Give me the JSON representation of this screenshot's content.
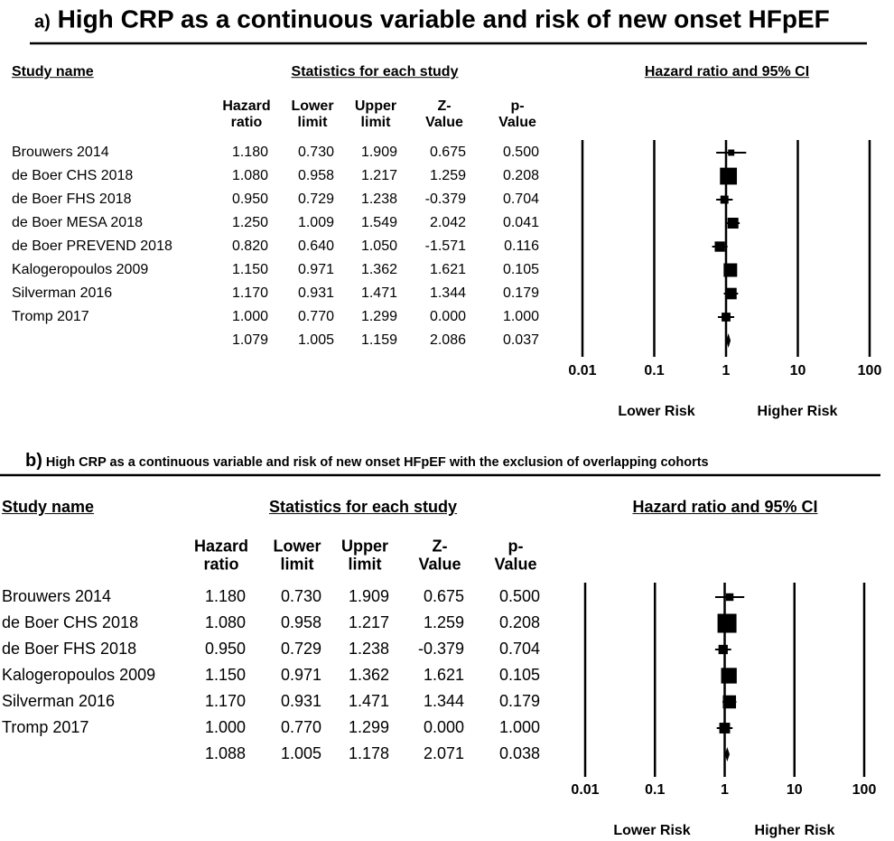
{
  "chart_data": [
    {
      "type": "forest",
      "panel_label": "a)",
      "title": "High CRP as a continuous variable and risk of new onset HFpEF",
      "study_header": "Study name",
      "stats_header": "Statistics for each study",
      "plot_header": "Hazard ratio and 95% CI",
      "categories": [
        "Brouwers 2014",
        "de Boer CHS 2018",
        "de Boer FHS 2018",
        "de Boer MESA 2018",
        "de Boer PREVEND 2018",
        "Kalogeropoulos 2009",
        "Silverman 2016",
        "Tromp 2017",
        null
      ],
      "hazard_ratio": {
        "name": "Hazard ratio",
        "values": [
          1.18,
          1.08,
          0.95,
          1.25,
          0.82,
          1.15,
          1.17,
          1.0,
          1.079
        ],
        "value_labels": [
          "1.180",
          "1.080",
          "0.950",
          "1.250",
          "0.820",
          "1.150",
          "1.170",
          "1.000",
          "1.079"
        ]
      },
      "lower_limit": {
        "name": "Lower limit",
        "values": [
          0.73,
          0.958,
          0.729,
          1.009,
          0.64,
          0.971,
          0.931,
          0.77,
          1.005
        ],
        "value_labels": [
          "0.730",
          "0.958",
          "0.729",
          "1.009",
          "0.640",
          "0.971",
          "0.931",
          "0.770",
          "1.005"
        ]
      },
      "upper_limit": {
        "name": "Upper limit",
        "values": [
          1.909,
          1.217,
          1.238,
          1.549,
          1.05,
          1.362,
          1.471,
          1.299,
          1.159
        ],
        "value_labels": [
          "1.909",
          "1.217",
          "1.238",
          "1.549",
          "1.050",
          "1.362",
          "1.471",
          "1.299",
          "1.159"
        ]
      },
      "z_value": {
        "name": "Z-Value",
        "values": [
          0.675,
          1.259,
          -0.379,
          2.042,
          -1.571,
          1.621,
          1.344,
          0,
          2.086
        ],
        "value_labels": [
          "0.675",
          "1.259",
          "-0.379",
          "2.042",
          "-1.571",
          "1.621",
          "1.344",
          "0.000",
          "2.086"
        ]
      },
      "p_value": {
        "name": "p-Value",
        "values": [
          0.5,
          0.208,
          0.704,
          0.041,
          0.116,
          0.105,
          0.179,
          1,
          0.037
        ],
        "value_labels": [
          "0.500",
          "0.208",
          "0.704",
          "0.041",
          "0.116",
          "0.105",
          "0.179",
          "1.000",
          "0.037"
        ]
      },
      "weights": [
        3,
        22,
        5,
        9,
        8,
        14,
        10,
        6,
        null
      ],
      "log_x": true,
      "xlim": [
        0.01,
        100
      ],
      "xticks": [
        0.01,
        0.1,
        1,
        10,
        100
      ],
      "grid": true,
      "x_annotations": [
        "Lower Risk",
        "Higher Risk"
      ],
      "color": "#000000"
    },
    {
      "type": "forest",
      "panel_label": "b)",
      "title": "High CRP as a continuous variable and risk of new onset HFpEF with the exclusion of overlapping cohorts",
      "study_header": "Study name",
      "stats_header": "Statistics for each study",
      "plot_header": "Hazard ratio and 95% CI",
      "categories": [
        "Brouwers 2014",
        "de Boer CHS 2018",
        "de Boer FHS 2018",
        "Kalogeropoulos 2009",
        "Silverman 2016",
        "Tromp 2017",
        null
      ],
      "hazard_ratio": {
        "name": "Hazard ratio",
        "values": [
          1.18,
          1.08,
          0.95,
          1.15,
          1.17,
          1.0,
          1.088
        ],
        "value_labels": [
          "1.180",
          "1.080",
          "0.950",
          "1.150",
          "1.170",
          "1.000",
          "1.088"
        ]
      },
      "lower_limit": {
        "name": "Lower limit",
        "values": [
          0.73,
          0.958,
          0.729,
          0.971,
          0.931,
          0.77,
          1.005
        ],
        "value_labels": [
          "0.730",
          "0.958",
          "0.729",
          "0.971",
          "0.931",
          "0.770",
          "1.005"
        ]
      },
      "upper_limit": {
        "name": "Upper limit",
        "values": [
          1.909,
          1.217,
          1.238,
          1.362,
          1.471,
          1.299,
          1.178
        ],
        "value_labels": [
          "1.909",
          "1.217",
          "1.238",
          "1.362",
          "1.471",
          "1.299",
          "1.178"
        ]
      },
      "z_value": {
        "name": "Z-Value",
        "values": [
          0.675,
          1.259,
          -0.379,
          1.621,
          1.344,
          0,
          2.071
        ],
        "value_labels": [
          "0.675",
          "1.259",
          "-0.379",
          "1.621",
          "1.344",
          "0.000",
          "2.071"
        ]
      },
      "p_value": {
        "name": "p-Value",
        "values": [
          0.5,
          0.208,
          0.704,
          0.105,
          0.179,
          1,
          0.038
        ],
        "value_labels": [
          "0.500",
          "0.208",
          "0.704",
          "0.105",
          "0.179",
          "1.000",
          "0.038"
        ]
      },
      "weights": [
        4,
        25,
        6,
        17,
        12,
        8,
        null
      ],
      "log_x": true,
      "xlim": [
        0.01,
        100
      ],
      "xticks": [
        0.01,
        0.1,
        1,
        10,
        100
      ],
      "grid": true,
      "x_annotations": [
        "Lower Risk",
        "Higher Risk"
      ],
      "color": "#000000"
    }
  ]
}
